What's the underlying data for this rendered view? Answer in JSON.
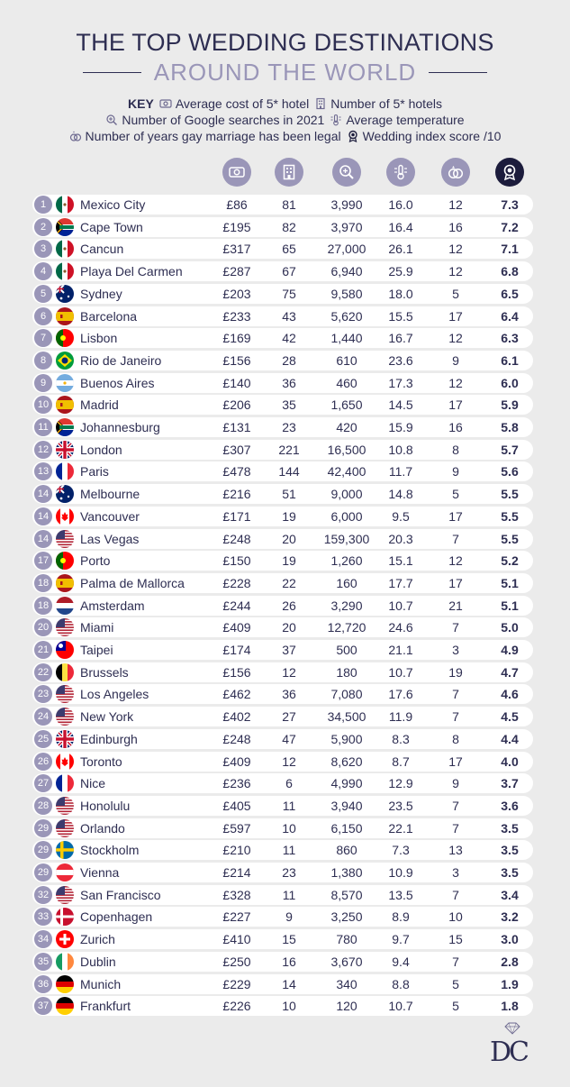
{
  "header": {
    "title_line1": "THE TOP WEDDING DESTINATIONS",
    "title_line2": "AROUND THE WORLD"
  },
  "key": {
    "label": "KEY",
    "items": [
      {
        "icon": "hotel-cost-icon",
        "text": "Average cost of 5* hotel"
      },
      {
        "icon": "hotel-building-icon",
        "text": "Number of 5* hotels"
      },
      {
        "icon": "magnifier-icon",
        "text": "Number of Google searches in 2021"
      },
      {
        "icon": "thermometer-icon",
        "text": "Average temperature"
      },
      {
        "icon": "rings-icon",
        "text": "Number of years gay marriage has been legal"
      },
      {
        "icon": "award-icon",
        "text": "Wedding index score /10"
      }
    ]
  },
  "colors": {
    "navy": "#2e2e52",
    "lavender": "#9a96b8",
    "dark": "#1c1c3c",
    "background": "#ebebeb",
    "row": "#ffffff"
  },
  "chart_data": {
    "type": "table",
    "columns": [
      "Average cost of 5* hotel",
      "Number of 5* hotels",
      "Number of Google searches in 2021",
      "Average temperature",
      "Number of years gay marriage has been legal",
      "Wedding index score /10"
    ],
    "rows": [
      {
        "rank": "1",
        "flag": "mexico",
        "city": "Mexico City",
        "cost": "£86",
        "hotels": "81",
        "searches": "3,990",
        "temp": "16.0",
        "years": "12",
        "score": "7.3"
      },
      {
        "rank": "2",
        "flag": "south-africa",
        "city": "Cape Town",
        "cost": "£195",
        "hotels": "82",
        "searches": "3,970",
        "temp": "16.4",
        "years": "16",
        "score": "7.2"
      },
      {
        "rank": "3",
        "flag": "mexico",
        "city": "Cancun",
        "cost": "£317",
        "hotels": "65",
        "searches": "27,000",
        "temp": "26.1",
        "years": "12",
        "score": "7.1"
      },
      {
        "rank": "4",
        "flag": "mexico",
        "city": "Playa Del Carmen",
        "cost": "£287",
        "hotels": "67",
        "searches": "6,940",
        "temp": "25.9",
        "years": "12",
        "score": "6.8"
      },
      {
        "rank": "5",
        "flag": "australia",
        "city": "Sydney",
        "cost": "£203",
        "hotels": "75",
        "searches": "9,580",
        "temp": "18.0",
        "years": "5",
        "score": "6.5"
      },
      {
        "rank": "6",
        "flag": "spain",
        "city": "Barcelona",
        "cost": "£233",
        "hotels": "43",
        "searches": "5,620",
        "temp": "15.5",
        "years": "17",
        "score": "6.4"
      },
      {
        "rank": "7",
        "flag": "portugal",
        "city": "Lisbon",
        "cost": "£169",
        "hotels": "42",
        "searches": "1,440",
        "temp": "16.7",
        "years": "12",
        "score": "6.3"
      },
      {
        "rank": "8",
        "flag": "brazil",
        "city": "Rio de Janeiro",
        "cost": "£156",
        "hotels": "28",
        "searches": "610",
        "temp": "23.6",
        "years": "9",
        "score": "6.1"
      },
      {
        "rank": "9",
        "flag": "argentina",
        "city": "Buenos Aires",
        "cost": "£140",
        "hotels": "36",
        "searches": "460",
        "temp": "17.3",
        "years": "12",
        "score": "6.0"
      },
      {
        "rank": "10",
        "flag": "spain",
        "city": "Madrid",
        "cost": "£206",
        "hotels": "35",
        "searches": "1,650",
        "temp": "14.5",
        "years": "17",
        "score": "5.9"
      },
      {
        "rank": "11",
        "flag": "south-africa",
        "city": "Johannesburg",
        "cost": "£131",
        "hotels": "23",
        "searches": "420",
        "temp": "15.9",
        "years": "16",
        "score": "5.8"
      },
      {
        "rank": "12",
        "flag": "uk",
        "city": "London",
        "cost": "£307",
        "hotels": "221",
        "searches": "16,500",
        "temp": "10.8",
        "years": "8",
        "score": "5.7"
      },
      {
        "rank": "13",
        "flag": "france",
        "city": "Paris",
        "cost": "£478",
        "hotels": "144",
        "searches": "42,400",
        "temp": "11.7",
        "years": "9",
        "score": "5.6"
      },
      {
        "rank": "14",
        "flag": "australia",
        "city": "Melbourne",
        "cost": "£216",
        "hotels": "51",
        "searches": "9,000",
        "temp": "14.8",
        "years": "5",
        "score": "5.5"
      },
      {
        "rank": "14",
        "flag": "canada",
        "city": "Vancouver",
        "cost": "£171",
        "hotels": "19",
        "searches": "6,000",
        "temp": "9.5",
        "years": "17",
        "score": "5.5"
      },
      {
        "rank": "14",
        "flag": "usa",
        "city": "Las Vegas",
        "cost": "£248",
        "hotels": "20",
        "searches": "159,300",
        "temp": "20.3",
        "years": "7",
        "score": "5.5"
      },
      {
        "rank": "17",
        "flag": "portugal",
        "city": "Porto",
        "cost": "£150",
        "hotels": "19",
        "searches": "1,260",
        "temp": "15.1",
        "years": "12",
        "score": "5.2"
      },
      {
        "rank": "18",
        "flag": "spain",
        "city": "Palma de Mallorca",
        "cost": "£228",
        "hotels": "22",
        "searches": "160",
        "temp": "17.7",
        "years": "17",
        "score": "5.1"
      },
      {
        "rank": "18",
        "flag": "netherlands",
        "city": "Amsterdam",
        "cost": "£244",
        "hotels": "26",
        "searches": "3,290",
        "temp": "10.7",
        "years": "21",
        "score": "5.1"
      },
      {
        "rank": "20",
        "flag": "usa",
        "city": "Miami",
        "cost": "£409",
        "hotels": "20",
        "searches": "12,720",
        "temp": "24.6",
        "years": "7",
        "score": "5.0"
      },
      {
        "rank": "21",
        "flag": "taiwan",
        "city": "Taipei",
        "cost": "£174",
        "hotels": "37",
        "searches": "500",
        "temp": "21.1",
        "years": "3",
        "score": "4.9"
      },
      {
        "rank": "22",
        "flag": "belgium",
        "city": "Brussels",
        "cost": "£156",
        "hotels": "12",
        "searches": "180",
        "temp": "10.7",
        "years": "19",
        "score": "4.7"
      },
      {
        "rank": "23",
        "flag": "usa",
        "city": "Los Angeles",
        "cost": "£462",
        "hotels": "36",
        "searches": "7,080",
        "temp": "17.6",
        "years": "7",
        "score": "4.6"
      },
      {
        "rank": "24",
        "flag": "usa",
        "city": "New York",
        "cost": "£402",
        "hotels": "27",
        "searches": "34,500",
        "temp": "11.9",
        "years": "7",
        "score": "4.5"
      },
      {
        "rank": "25",
        "flag": "uk",
        "city": "Edinburgh",
        "cost": "£248",
        "hotels": "47",
        "searches": "5,900",
        "temp": "8.3",
        "years": "8",
        "score": "4.4"
      },
      {
        "rank": "26",
        "flag": "canada",
        "city": "Toronto",
        "cost": "£409",
        "hotels": "12",
        "searches": "8,620",
        "temp": "8.7",
        "years": "17",
        "score": "4.0"
      },
      {
        "rank": "27",
        "flag": "france",
        "city": "Nice",
        "cost": "£236",
        "hotels": "6",
        "searches": "4,990",
        "temp": "12.9",
        "years": "9",
        "score": "3.7"
      },
      {
        "rank": "28",
        "flag": "usa",
        "city": "Honolulu",
        "cost": "£405",
        "hotels": "11",
        "searches": "3,940",
        "temp": "23.5",
        "years": "7",
        "score": "3.6"
      },
      {
        "rank": "29",
        "flag": "usa",
        "city": "Orlando",
        "cost": "£597",
        "hotels": "10",
        "searches": "6,150",
        "temp": "22.1",
        "years": "7",
        "score": "3.5"
      },
      {
        "rank": "29",
        "flag": "sweden",
        "city": "Stockholm",
        "cost": "£210",
        "hotels": "11",
        "searches": "860",
        "temp": "7.3",
        "years": "13",
        "score": "3.5"
      },
      {
        "rank": "29",
        "flag": "austria",
        "city": "Vienna",
        "cost": "£214",
        "hotels": "23",
        "searches": "1,380",
        "temp": "10.9",
        "years": "3",
        "score": "3.5"
      },
      {
        "rank": "32",
        "flag": "usa",
        "city": "San Francisco",
        "cost": "£328",
        "hotels": "11",
        "searches": "8,570",
        "temp": "13.5",
        "years": "7",
        "score": "3.4"
      },
      {
        "rank": "33",
        "flag": "denmark",
        "city": "Copenhagen",
        "cost": "£227",
        "hotels": "9",
        "searches": "3,250",
        "temp": "8.9",
        "years": "10",
        "score": "3.2"
      },
      {
        "rank": "34",
        "flag": "switzerland",
        "city": "Zurich",
        "cost": "£410",
        "hotels": "15",
        "searches": "780",
        "temp": "9.7",
        "years": "15",
        "score": "3.0"
      },
      {
        "rank": "35",
        "flag": "ireland",
        "city": "Dublin",
        "cost": "£250",
        "hotels": "16",
        "searches": "3,670",
        "temp": "9.4",
        "years": "7",
        "score": "2.8"
      },
      {
        "rank": "36",
        "flag": "germany",
        "city": "Munich",
        "cost": "£229",
        "hotels": "14",
        "searches": "340",
        "temp": "8.8",
        "years": "5",
        "score": "1.9"
      },
      {
        "rank": "37",
        "flag": "germany",
        "city": "Frankfurt",
        "cost": "£226",
        "hotels": "10",
        "searches": "120",
        "temp": "10.7",
        "years": "5",
        "score": "1.8"
      }
    ]
  },
  "footer": {
    "logo_icon": "dc-diamond-logo-icon"
  }
}
